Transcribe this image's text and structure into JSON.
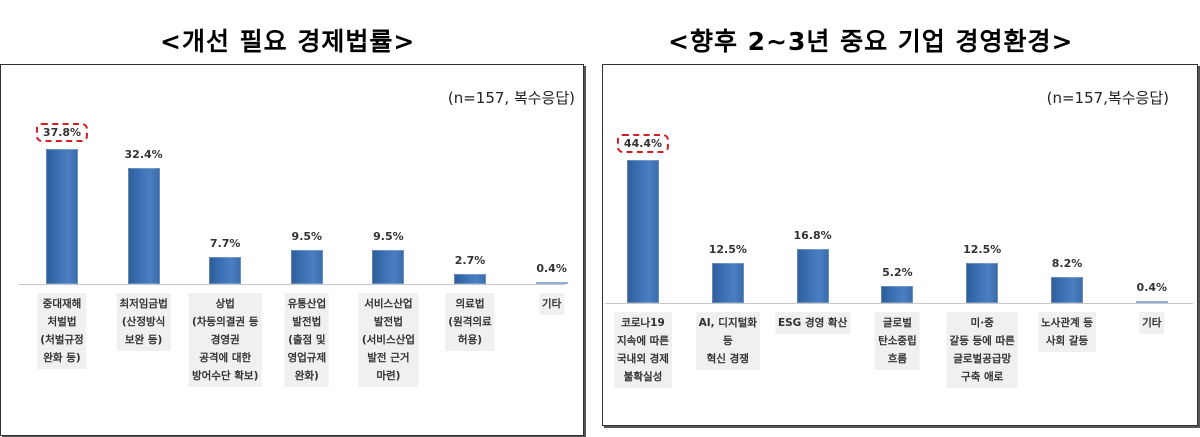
{
  "left": {
    "title": "<개선 필요 경제법률>",
    "note": "(n=157, 복수응답)"
  },
  "right": {
    "title": "<향후 2~3년 중요 기업 경영환경>",
    "note": "(n=157,복수응답)"
  },
  "chart_data": [
    {
      "type": "bar",
      "title": "<개선 필요 경제법률>",
      "subtitle": "(n=157, 복수응답)",
      "xlabel": "",
      "ylabel": "",
      "unit": "%",
      "categories": [
        "중대재해\n처벌법\n(처벌규정\n완화 등)",
        "최저임금법\n(산정방식\n보완 등)",
        "상법\n(차등의결권 등\n경영권\n공격에 대한\n방어수단 확보)",
        "유통산업\n발전법\n(출점 및\n영업규제\n완화)",
        "서비스산업\n발전법\n(서비스산업\n발전 근거\n마련)",
        "의료법\n(원격의료\n허용)",
        "기타"
      ],
      "values": [
        37.8,
        32.4,
        7.7,
        9.5,
        9.5,
        2.7,
        0.4
      ],
      "value_labels": [
        "37.8%",
        "32.4%",
        "7.7%",
        "9.5%",
        "9.5%",
        "2.7%",
        "0.4%"
      ],
      "highlight_index": 0,
      "grid": false,
      "legend": false,
      "bar_color": "#3c72b6",
      "highlight_color": "#d11f26"
    },
    {
      "type": "bar",
      "title": "<향후 2~3년 중요 기업 경영환경>",
      "subtitle": "(n=157,복수응답)",
      "xlabel": "",
      "ylabel": "",
      "unit": "%",
      "categories": [
        "코로나19\n지속에 따른\n국내외 경제\n불확실성",
        "AI, 디지털화\n등\n혁신 경쟁",
        "ESG 경영 확산",
        "글로벌\n탄소중립\n흐름",
        "미·중\n갈등 등에 따른\n글로벌공급망\n구축 애로",
        "노사관계 등\n사회 갈등",
        "기타"
      ],
      "values": [
        44.4,
        12.5,
        16.8,
        5.2,
        12.5,
        8.2,
        0.4
      ],
      "value_labels": [
        "44.4%",
        "12.5%",
        "16.8%",
        "5.2%",
        "12.5%",
        "8.2%",
        "0.4%"
      ],
      "highlight_index": 0,
      "grid": false,
      "legend": false,
      "bar_color": "#3c72b6",
      "highlight_color": "#d11f26"
    }
  ]
}
